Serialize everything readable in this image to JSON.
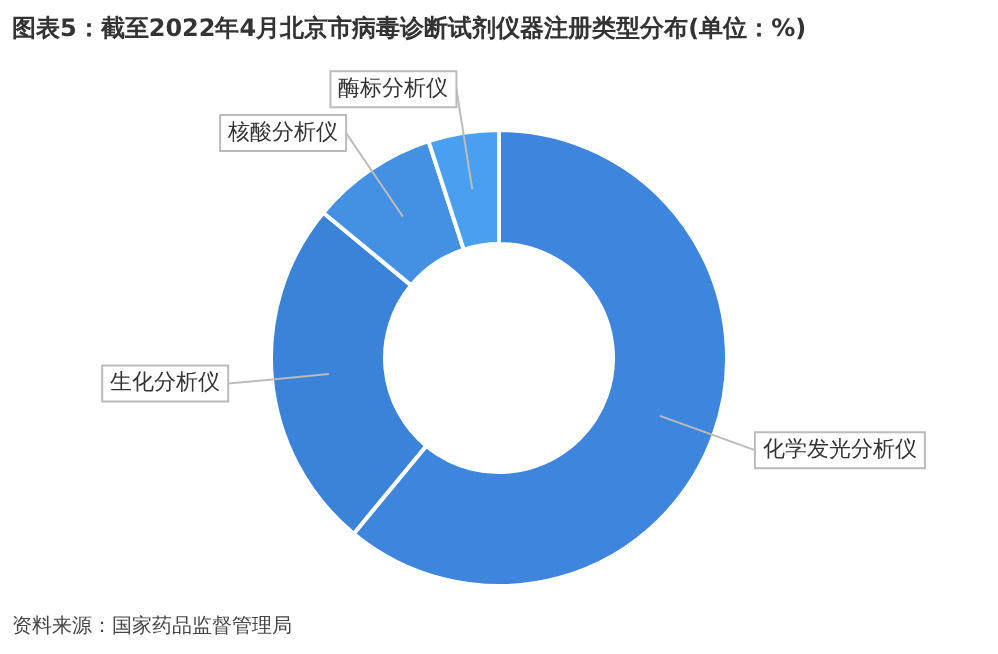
{
  "chart_data": {
    "type": "donut",
    "title": "图表5：截至2022年4月北京市病毒诊断试剂仪器注册类型分布(单位：%)",
    "categories": [
      "化学发光分析仪",
      "生化分析仪",
      "核酸分析仪",
      "酶标分析仪"
    ],
    "values": [
      61,
      25,
      9,
      5
    ],
    "colors": [
      "#3e85de",
      "#3b82d9",
      "#4490e3",
      "#4aa0f0"
    ],
    "legend": false,
    "annotations": [
      "资料来源：国家药品监督管理局"
    ]
  }
}
